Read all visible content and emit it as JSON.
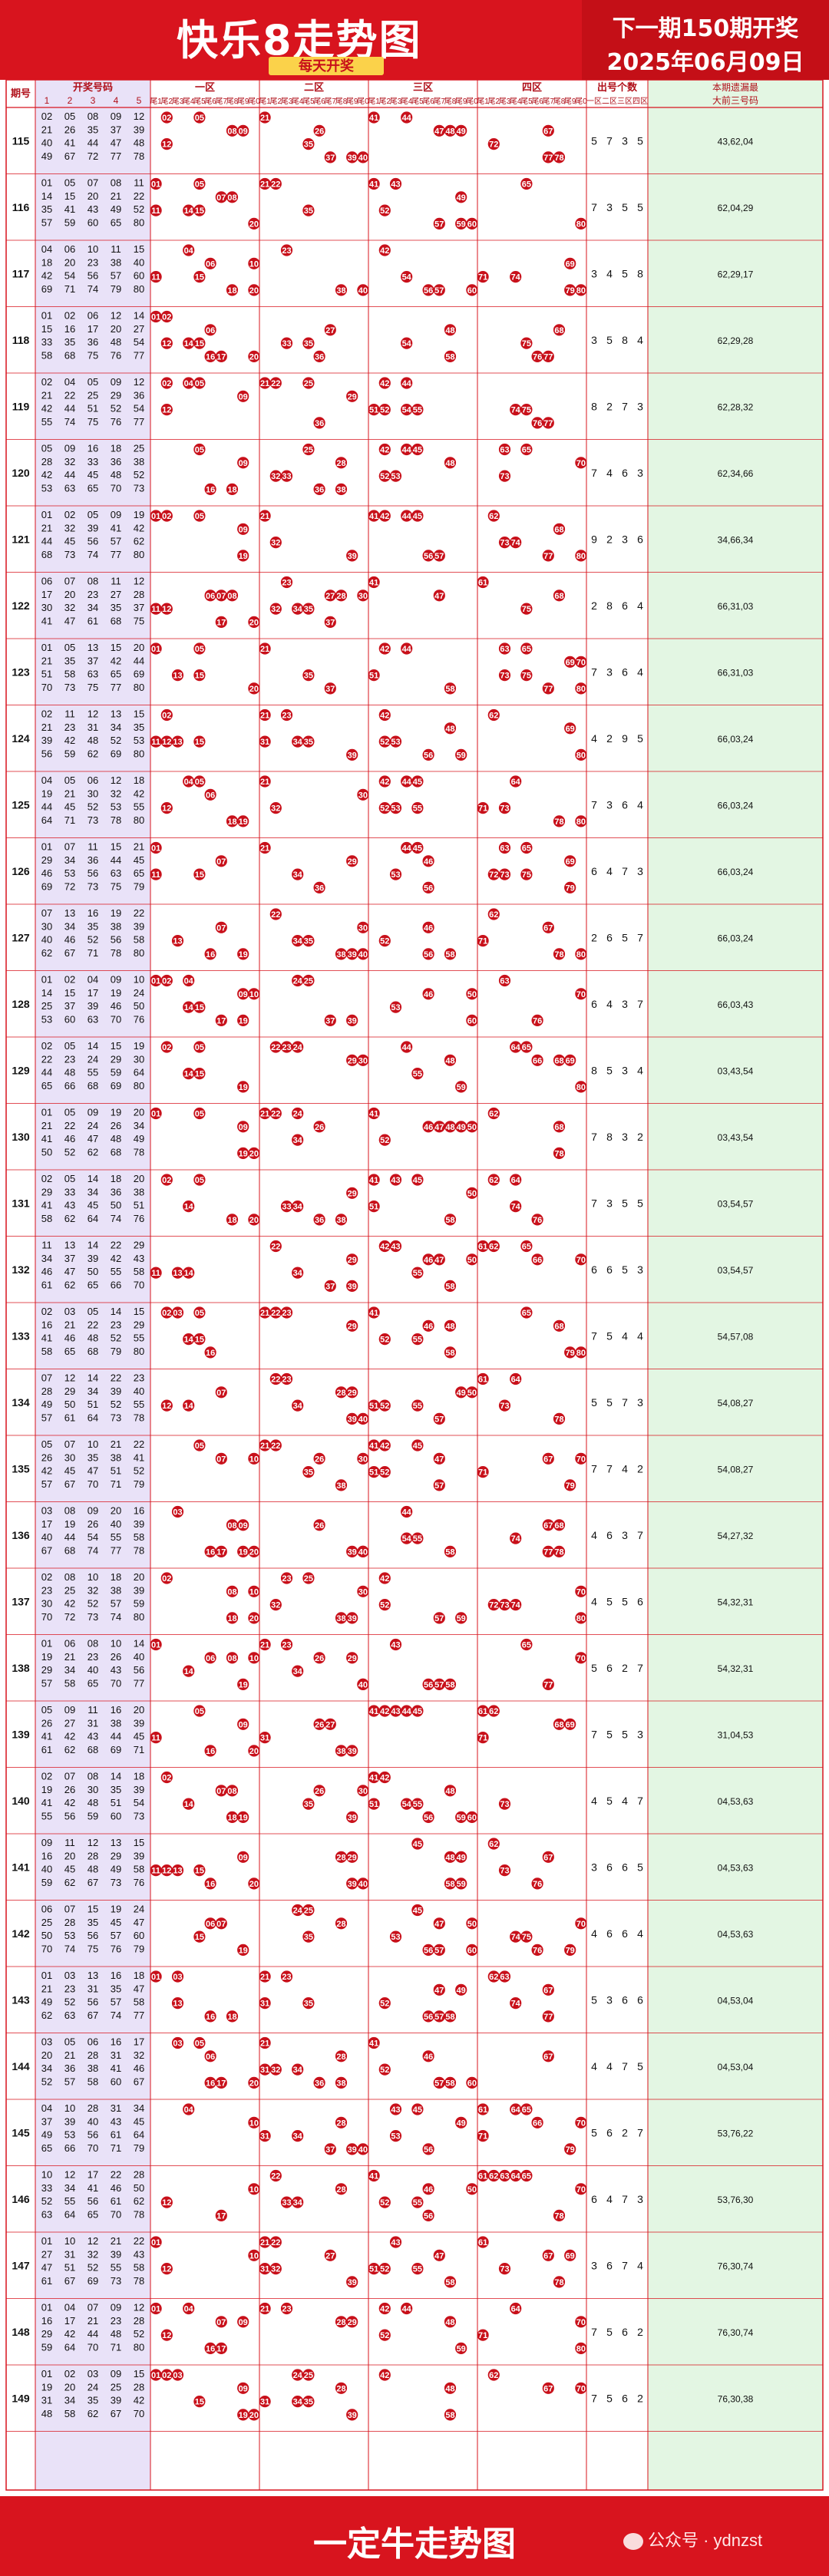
{
  "header": {
    "title": "快乐8走势图",
    "subtitle": "每天开奖",
    "next_line1": "下一期150期开奖",
    "next_line2": "2025年06月09日"
  },
  "footer": {
    "brand": "一定牛走势图",
    "wechat": "公众号 · ydnzst"
  },
  "table": {
    "col_issue": "期号",
    "col_draw": "开奖号码",
    "draw_subcols": [
      "1",
      "2",
      "3",
      "4",
      "5"
    ],
    "zones": [
      "一区",
      "二区",
      "三区",
      "四区"
    ],
    "tails": [
      "尾1",
      "尾2",
      "尾3",
      "尾4",
      "尾5",
      "尾6",
      "尾7",
      "尾8",
      "尾9",
      "尾0"
    ],
    "col_count": "出号个数",
    "count_subcols": [
      "一区",
      "二区",
      "三区",
      "四区"
    ],
    "col_missing_1": "本期遗漏最",
    "col_missing_2": "大前三号码"
  },
  "colors": {
    "accent": "#d8141e",
    "badge": "#fbd24a",
    "draw_bg": "#e9e2f8",
    "missing_bg": "#e3f6e3"
  },
  "chart_data": {
    "type": "table",
    "rows": [
      {
        "issue": "115",
        "numbers": [
          2,
          5,
          8,
          9,
          12,
          21,
          26,
          35,
          37,
          39,
          40,
          41,
          44,
          47,
          48,
          49,
          67,
          72,
          77,
          78
        ],
        "counts": [
          5,
          7,
          3,
          5
        ],
        "missing": "43,62,04"
      },
      {
        "issue": "116",
        "numbers": [
          1,
          5,
          7,
          8,
          11,
          14,
          15,
          20,
          21,
          22,
          35,
          41,
          43,
          49,
          52,
          57,
          59,
          60,
          65,
          80
        ],
        "counts": [
          7,
          3,
          5,
          5
        ],
        "missing": "62,04,29"
      },
      {
        "issue": "117",
        "numbers": [
          4,
          6,
          10,
          11,
          15,
          18,
          20,
          23,
          38,
          40,
          42,
          54,
          56,
          57,
          60,
          69,
          71,
          74,
          79,
          80
        ],
        "counts": [
          3,
          4,
          5,
          8
        ],
        "missing": "62,29,17"
      },
      {
        "issue": "118",
        "numbers": [
          1,
          2,
          6,
          12,
          14,
          15,
          16,
          17,
          20,
          27,
          33,
          35,
          36,
          48,
          54,
          58,
          68,
          75,
          76,
          77
        ],
        "counts": [
          3,
          5,
          8,
          4
        ],
        "missing": "62,29,28"
      },
      {
        "issue": "119",
        "numbers": [
          2,
          4,
          5,
          9,
          12,
          21,
          22,
          25,
          29,
          36,
          42,
          44,
          51,
          52,
          54,
          55,
          74,
          75,
          76,
          77
        ],
        "counts": [
          8,
          2,
          7,
          3
        ],
        "missing": "62,28,32"
      },
      {
        "issue": "120",
        "numbers": [
          5,
          9,
          16,
          18,
          25,
          28,
          32,
          33,
          36,
          38,
          42,
          44,
          45,
          48,
          52,
          53,
          63,
          65,
          70,
          73
        ],
        "counts": [
          7,
          4,
          6,
          3
        ],
        "missing": "62,34,66"
      },
      {
        "issue": "121",
        "numbers": [
          1,
          2,
          5,
          9,
          19,
          21,
          32,
          39,
          41,
          42,
          44,
          45,
          56,
          57,
          62,
          68,
          73,
          74,
          77,
          80
        ],
        "counts": [
          9,
          2,
          3,
          6
        ],
        "missing": "34,66,34"
      },
      {
        "issue": "122",
        "numbers": [
          6,
          7,
          8,
          11,
          12,
          17,
          20,
          23,
          27,
          28,
          30,
          32,
          34,
          35,
          37,
          41,
          47,
          61,
          68,
          75
        ],
        "counts": [
          2,
          8,
          6,
          4
        ],
        "missing": "66,31,03"
      },
      {
        "issue": "123",
        "numbers": [
          1,
          5,
          13,
          15,
          20,
          21,
          35,
          37,
          42,
          44,
          51,
          58,
          63,
          65,
          69,
          70,
          73,
          75,
          77,
          80
        ],
        "counts": [
          7,
          3,
          6,
          4
        ],
        "missing": "66,31,03"
      },
      {
        "issue": "124",
        "numbers": [
          2,
          11,
          12,
          13,
          15,
          21,
          23,
          31,
          34,
          35,
          39,
          42,
          48,
          52,
          53,
          56,
          59,
          62,
          69,
          80
        ],
        "counts": [
          4,
          2,
          9,
          5
        ],
        "missing": "66,03,24"
      },
      {
        "issue": "125",
        "numbers": [
          4,
          5,
          6,
          12,
          18,
          19,
          21,
          30,
          32,
          42,
          44,
          45,
          52,
          53,
          55,
          64,
          71,
          73,
          78,
          80
        ],
        "counts": [
          7,
          3,
          6,
          4
        ],
        "missing": "66,03,24"
      },
      {
        "issue": "126",
        "numbers": [
          1,
          7,
          11,
          15,
          21,
          29,
          34,
          36,
          44,
          45,
          46,
          53,
          56,
          63,
          65,
          69,
          72,
          73,
          75,
          79
        ],
        "counts": [
          6,
          4,
          7,
          3
        ],
        "missing": "66,03,24"
      },
      {
        "issue": "127",
        "numbers": [
          7,
          13,
          16,
          19,
          22,
          30,
          34,
          35,
          38,
          39,
          40,
          46,
          52,
          56,
          58,
          62,
          67,
          71,
          78,
          80
        ],
        "counts": [
          2,
          6,
          5,
          7
        ],
        "missing": "66,03,24"
      },
      {
        "issue": "128",
        "numbers": [
          1,
          2,
          4,
          9,
          10,
          14,
          15,
          17,
          19,
          24,
          25,
          37,
          39,
          46,
          50,
          53,
          60,
          63,
          70,
          76
        ],
        "counts": [
          6,
          4,
          3,
          7
        ],
        "missing": "66,03,43"
      },
      {
        "issue": "129",
        "numbers": [
          2,
          5,
          14,
          15,
          19,
          22,
          23,
          24,
          29,
          30,
          44,
          48,
          55,
          59,
          64,
          65,
          66,
          68,
          69,
          80
        ],
        "counts": [
          8,
          5,
          3,
          4
        ],
        "missing": "03,43,54"
      },
      {
        "issue": "130",
        "numbers": [
          1,
          5,
          9,
          19,
          20,
          21,
          22,
          24,
          26,
          34,
          41,
          46,
          47,
          48,
          49,
          50,
          52,
          62,
          68,
          78
        ],
        "counts": [
          7,
          8,
          3,
          2
        ],
        "missing": "03,43,54"
      },
      {
        "issue": "131",
        "numbers": [
          2,
          5,
          14,
          18,
          20,
          29,
          33,
          34,
          36,
          38,
          41,
          43,
          45,
          50,
          51,
          58,
          62,
          64,
          74,
          76
        ],
        "counts": [
          7,
          3,
          5,
          5
        ],
        "missing": "03,54,57"
      },
      {
        "issue": "132",
        "numbers": [
          11,
          13,
          14,
          22,
          29,
          34,
          37,
          39,
          42,
          43,
          46,
          47,
          50,
          55,
          58,
          61,
          62,
          65,
          66,
          70
        ],
        "counts": [
          6,
          6,
          5,
          3
        ],
        "missing": "03,54,57"
      },
      {
        "issue": "133",
        "numbers": [
          2,
          3,
          5,
          14,
          15,
          16,
          21,
          22,
          23,
          29,
          41,
          46,
          48,
          52,
          55,
          58,
          65,
          68,
          79,
          80
        ],
        "counts": [
          7,
          5,
          4,
          4
        ],
        "missing": "54,57,08"
      },
      {
        "issue": "134",
        "numbers": [
          7,
          12,
          14,
          22,
          23,
          28,
          29,
          34,
          39,
          40,
          49,
          50,
          51,
          52,
          55,
          57,
          61,
          64,
          73,
          78
        ],
        "counts": [
          5,
          5,
          7,
          3
        ],
        "missing": "54,08,27"
      },
      {
        "issue": "135",
        "numbers": [
          5,
          7,
          10,
          21,
          22,
          26,
          30,
          35,
          38,
          41,
          42,
          45,
          47,
          51,
          52,
          57,
          67,
          70,
          71,
          79
        ],
        "counts": [
          7,
          7,
          4,
          2
        ],
        "missing": "54,08,27"
      },
      {
        "issue": "136",
        "numbers": [
          3,
          8,
          9,
          20,
          16,
          17,
          19,
          26,
          40,
          39,
          40,
          44,
          54,
          55,
          58,
          67,
          68,
          74,
          77,
          78
        ],
        "counts": [
          4,
          6,
          3,
          7
        ],
        "missing": "54,27,32"
      },
      {
        "issue": "137",
        "numbers": [
          2,
          8,
          10,
          18,
          20,
          23,
          25,
          32,
          38,
          39,
          30,
          42,
          52,
          57,
          59,
          70,
          72,
          73,
          74,
          80
        ],
        "counts": [
          4,
          5,
          5,
          6
        ],
        "missing": "54,32,31"
      },
      {
        "issue": "138",
        "numbers": [
          1,
          6,
          8,
          10,
          14,
          19,
          21,
          23,
          26,
          40,
          29,
          34,
          40,
          43,
          56,
          57,
          58,
          65,
          70,
          77
        ],
        "counts": [
          5,
          6,
          2,
          7
        ],
        "missing": "54,32,31"
      },
      {
        "issue": "139",
        "numbers": [
          5,
          9,
          11,
          16,
          20,
          26,
          27,
          31,
          38,
          39,
          41,
          42,
          43,
          44,
          45,
          61,
          62,
          68,
          69,
          71
        ],
        "counts": [
          7,
          5,
          5,
          3
        ],
        "missing": "31,04,53"
      },
      {
        "issue": "140",
        "numbers": [
          2,
          7,
          8,
          14,
          18,
          19,
          26,
          30,
          35,
          39,
          41,
          42,
          48,
          51,
          54,
          55,
          56,
          59,
          60,
          73
        ],
        "counts": [
          4,
          5,
          4,
          7
        ],
        "missing": "04,53,63"
      },
      {
        "issue": "141",
        "numbers": [
          9,
          11,
          12,
          13,
          15,
          16,
          20,
          28,
          29,
          39,
          40,
          45,
          48,
          49,
          58,
          59,
          62,
          67,
          73,
          76
        ],
        "counts": [
          3,
          6,
          6,
          5
        ],
        "missing": "04,53,63"
      },
      {
        "issue": "142",
        "numbers": [
          6,
          7,
          15,
          19,
          24,
          25,
          28,
          35,
          45,
          47,
          50,
          53,
          56,
          57,
          60,
          70,
          74,
          75,
          76,
          79
        ],
        "counts": [
          4,
          6,
          6,
          4
        ],
        "missing": "04,53,63"
      },
      {
        "issue": "143",
        "numbers": [
          1,
          3,
          13,
          16,
          18,
          21,
          23,
          31,
          35,
          47,
          49,
          52,
          56,
          57,
          58,
          62,
          63,
          67,
          74,
          77
        ],
        "counts": [
          5,
          3,
          6,
          6
        ],
        "missing": "04,53,04"
      },
      {
        "issue": "144",
        "numbers": [
          3,
          5,
          6,
          16,
          17,
          20,
          21,
          28,
          31,
          32,
          34,
          36,
          38,
          41,
          46,
          52,
          57,
          58,
          60,
          67
        ],
        "counts": [
          4,
          4,
          7,
          5
        ],
        "missing": "04,53,04"
      },
      {
        "issue": "145",
        "numbers": [
          4,
          10,
          28,
          31,
          34,
          37,
          39,
          40,
          43,
          45,
          49,
          53,
          56,
          61,
          64,
          65,
          66,
          70,
          71,
          79
        ],
        "counts": [
          5,
          6,
          2,
          7
        ],
        "missing": "53,76,22"
      },
      {
        "issue": "146",
        "numbers": [
          10,
          12,
          17,
          22,
          28,
          33,
          34,
          41,
          46,
          50,
          52,
          55,
          56,
          61,
          62,
          63,
          64,
          65,
          70,
          78
        ],
        "counts": [
          6,
          4,
          7,
          3
        ],
        "missing": "53,76,30"
      },
      {
        "issue": "147",
        "numbers": [
          1,
          10,
          12,
          21,
          22,
          27,
          31,
          32,
          39,
          43,
          47,
          51,
          52,
          55,
          58,
          61,
          67,
          69,
          73,
          78
        ],
        "counts": [
          3,
          6,
          7,
          4
        ],
        "missing": "76,30,74"
      },
      {
        "issue": "148",
        "numbers": [
          1,
          4,
          7,
          9,
          12,
          16,
          17,
          21,
          23,
          28,
          29,
          42,
          44,
          48,
          52,
          59,
          64,
          70,
          71,
          80
        ],
        "counts": [
          7,
          5,
          6,
          2
        ],
        "missing": "76,30,74"
      },
      {
        "issue": "149",
        "numbers": [
          1,
          2,
          3,
          9,
          15,
          19,
          20,
          24,
          25,
          28,
          31,
          34,
          35,
          39,
          42,
          48,
          58,
          62,
          67,
          70
        ],
        "counts": [
          7,
          5,
          6,
          2
        ],
        "missing": "76,30,38"
      }
    ]
  }
}
